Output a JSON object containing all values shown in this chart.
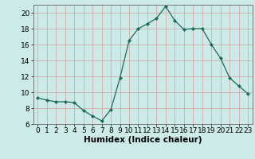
{
  "x": [
    0,
    1,
    2,
    3,
    4,
    5,
    6,
    7,
    8,
    9,
    10,
    11,
    12,
    13,
    14,
    15,
    16,
    17,
    18,
    19,
    20,
    21,
    22,
    23
  ],
  "y": [
    9.3,
    9.0,
    8.8,
    8.8,
    8.7,
    7.7,
    7.0,
    6.4,
    7.8,
    11.8,
    16.5,
    18.0,
    18.6,
    19.3,
    20.8,
    19.0,
    17.9,
    18.0,
    18.0,
    16.0,
    14.3,
    11.8,
    10.8,
    9.8
  ],
  "xlabel": "Humidex (Indice chaleur)",
  "bg_color": "#cceae7",
  "line_color": "#1a6b5a",
  "ylim": [
    6,
    21
  ],
  "xlim": [
    -0.5,
    23.5
  ],
  "yticks": [
    6,
    8,
    10,
    12,
    14,
    16,
    18,
    20
  ],
  "xticks": [
    0,
    1,
    2,
    3,
    4,
    5,
    6,
    7,
    8,
    9,
    10,
    11,
    12,
    13,
    14,
    15,
    16,
    17,
    18,
    19,
    20,
    21,
    22,
    23
  ],
  "grid_color": "#d4a0a0",
  "xlabel_fontsize": 7.5,
  "tick_fontsize": 6.5
}
